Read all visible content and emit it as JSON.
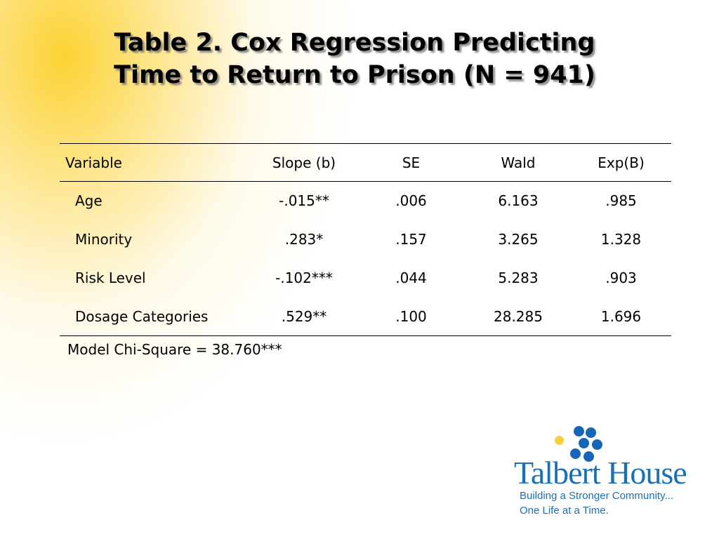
{
  "slide": {
    "title_line1": "Table 2. Cox Regression Predicting",
    "title_line2": "Time to Return to Prison (N = 941)"
  },
  "table": {
    "headers": [
      "Variable",
      "Slope (b)",
      "SE",
      "Wald",
      "Exp(B)"
    ],
    "rows": [
      [
        "Age",
        "-.015**",
        ".006",
        "6.163",
        ".985"
      ],
      [
        "Minority",
        ".283*",
        ".157",
        "3.265",
        "1.328"
      ],
      [
        "Risk Level",
        "-.102***",
        ".044",
        "5.283",
        ".903"
      ],
      [
        "Dosage Categories",
        ".529**",
        ".100",
        "28.285",
        "1.696"
      ]
    ],
    "footer": "Model Chi-Square = 38.760***"
  },
  "logo": {
    "name": "Talbert House",
    "tagline1": "Building a Stronger Community...",
    "tagline2": "One Life at a Time.",
    "colors": {
      "blue": "#1a6fb5",
      "yellow": "#f7cf3f"
    }
  }
}
